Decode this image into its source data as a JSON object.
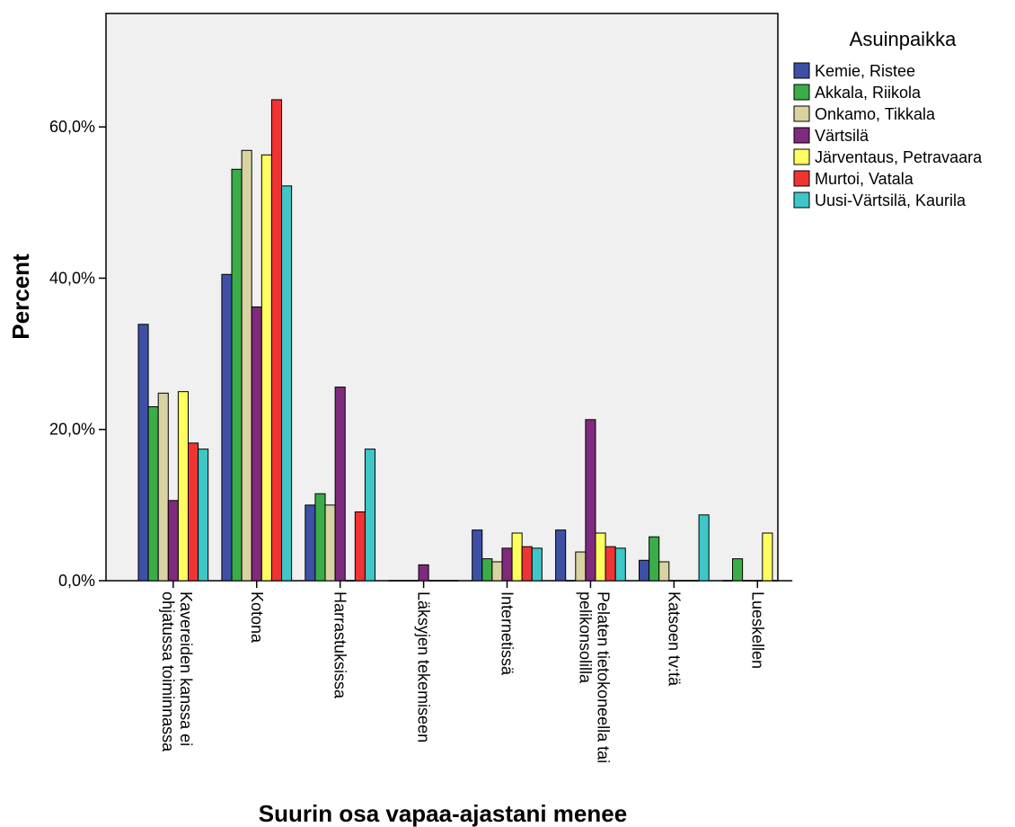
{
  "chart_data": {
    "type": "bar",
    "xlabel": "Suurin osa vapaa-ajastani menee",
    "ylabel": "Percent",
    "ylim": [
      0,
      75
    ],
    "yticks": [
      0,
      20,
      40,
      60
    ],
    "ytick_labels": [
      "0,0%",
      "20,0%",
      "40,0%",
      "60,0%"
    ],
    "grid": false,
    "legend_title": "Asuinpaikka",
    "legend_position": "right",
    "categories": [
      [
        "Kavereiden kanssa ei",
        "ohjatussa toiminnassa"
      ],
      [
        "Kotona"
      ],
      [
        "Harrastuksissa"
      ],
      [
        "Läksyjen tekemiseen"
      ],
      [
        "Internetissä"
      ],
      [
        "Pelaten tietokoneella tai",
        "pelikonsolilla"
      ],
      [
        "Katsoen tv:tä"
      ],
      [
        "Lueskellen"
      ]
    ],
    "series": [
      {
        "name": "Kemie, Ristee",
        "color": "#3d50a6",
        "values": [
          33.9,
          40.5,
          10.0,
          0,
          6.7,
          6.7,
          2.7,
          0
        ]
      },
      {
        "name": "Akkala, Riikola",
        "color": "#3aad48",
        "values": [
          23.0,
          54.4,
          11.5,
          0,
          2.9,
          0,
          5.8,
          2.9
        ]
      },
      {
        "name": "Onkamo, Tikkala",
        "color": "#d8d3a0",
        "values": [
          24.8,
          56.9,
          10.0,
          0,
          2.5,
          3.8,
          2.5,
          0
        ]
      },
      {
        "name": "Värtsilä",
        "color": "#7f2a7c",
        "values": [
          10.6,
          36.2,
          25.6,
          2.1,
          4.3,
          21.3,
          0,
          0
        ]
      },
      {
        "name": "Järventaus, Petravaara",
        "color": "#ffff60",
        "values": [
          25.0,
          56.3,
          0,
          0,
          6.3,
          6.3,
          0,
          6.3
        ]
      },
      {
        "name": "Murtoi, Vatala",
        "color": "#f03434",
        "values": [
          18.2,
          63.6,
          9.1,
          0,
          4.5,
          4.5,
          0,
          0
        ]
      },
      {
        "name": "Uusi-Värtsilä, Kaurila",
        "color": "#3fc6c6",
        "values": [
          17.4,
          52.2,
          17.4,
          0,
          4.3,
          4.3,
          8.7,
          0
        ]
      }
    ]
  }
}
